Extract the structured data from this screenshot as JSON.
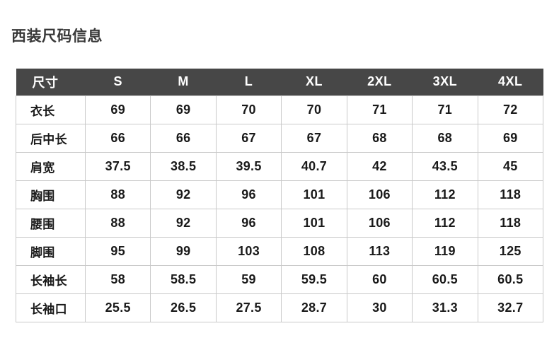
{
  "page": {
    "title": "西装尺码信息"
  },
  "colors": {
    "header_bg": "#474747",
    "header_text": "#ffffff",
    "body_text": "#1a1a1a",
    "border": "#c9c9c9",
    "title_text": "#383838",
    "background": "#ffffff"
  },
  "chart_data": {
    "type": "table",
    "title": "西装尺码信息",
    "columns": [
      "尺寸",
      "S",
      "M",
      "L",
      "XL",
      "2XL",
      "3XL",
      "4XL"
    ],
    "rows": [
      {
        "label": "衣长",
        "values": [
          "69",
          "69",
          "70",
          "70",
          "71",
          "71",
          "72"
        ]
      },
      {
        "label": "后中长",
        "values": [
          "66",
          "66",
          "67",
          "67",
          "68",
          "68",
          "69"
        ]
      },
      {
        "label": "肩宽",
        "values": [
          "37.5",
          "38.5",
          "39.5",
          "40.7",
          "42",
          "43.5",
          "45"
        ]
      },
      {
        "label": "胸围",
        "values": [
          "88",
          "92",
          "96",
          "101",
          "106",
          "112",
          "118"
        ]
      },
      {
        "label": "腰围",
        "values": [
          "88",
          "92",
          "96",
          "101",
          "106",
          "112",
          "118"
        ]
      },
      {
        "label": "脚围",
        "values": [
          "95",
          "99",
          "103",
          "108",
          "113",
          "119",
          "125"
        ]
      },
      {
        "label": "长袖长",
        "values": [
          "58",
          "58.5",
          "59",
          "59.5",
          "60",
          "60.5",
          "60.5"
        ]
      },
      {
        "label": "长袖口",
        "values": [
          "25.5",
          "26.5",
          "27.5",
          "28.7",
          "30",
          "31.3",
          "32.7"
        ]
      }
    ]
  }
}
